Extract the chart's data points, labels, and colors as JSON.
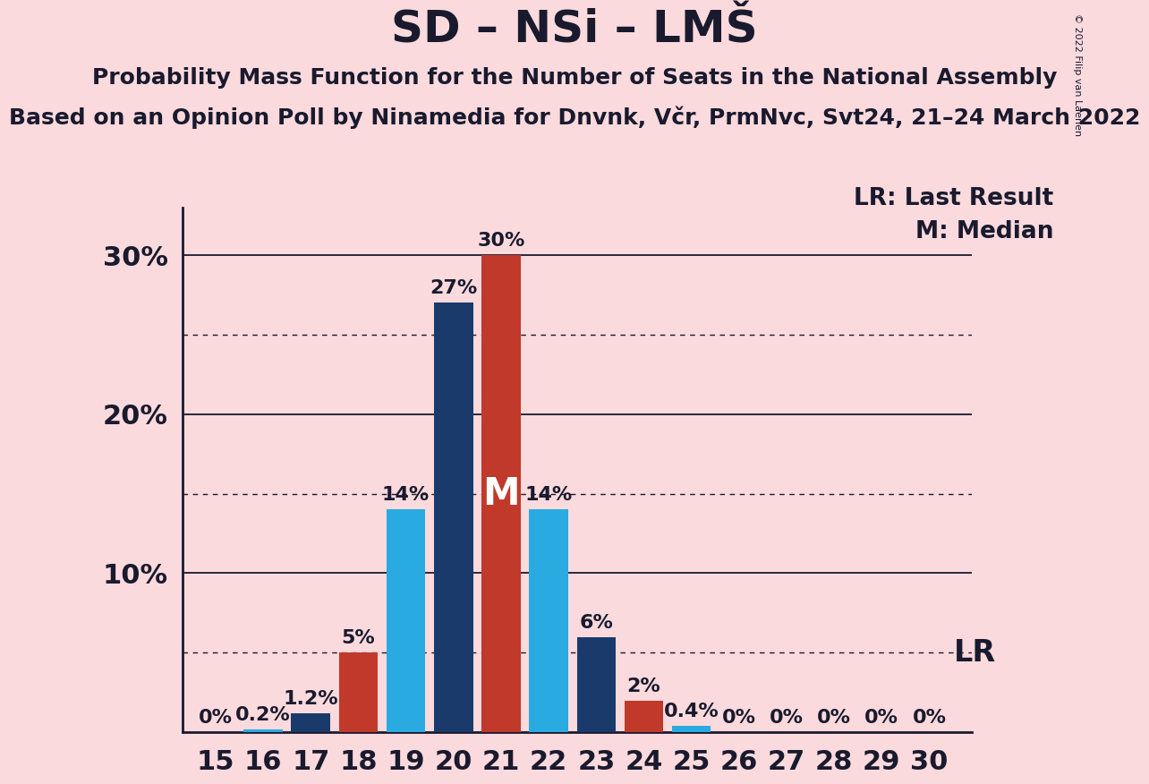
{
  "title": "SD – NSi – LMŠ",
  "subtitle1": "Probability Mass Function for the Number of Seats in the National Assembly",
  "subtitle2": "Based on an Opinion Poll by Ninamedia for Dnvnk, Včr, PrmNvc, Svt24, 21–24 March 2022",
  "copyright": "© 2022 Filip van Laenen",
  "background_color": "#fadadd",
  "seats": [
    15,
    16,
    17,
    18,
    19,
    20,
    21,
    22,
    23,
    24,
    25,
    26,
    27,
    28,
    29,
    30
  ],
  "values": [
    0.0,
    0.2,
    1.2,
    5.0,
    14.0,
    27.0,
    30.0,
    14.0,
    6.0,
    2.0,
    0.4,
    0.0,
    0.0,
    0.0,
    0.0,
    0.0
  ],
  "colors": [
    "#29abe2",
    "#29abe2",
    "#1a3a6b",
    "#c0392b",
    "#29abe2",
    "#1a3a6b",
    "#c0392b",
    "#29abe2",
    "#1a3a6b",
    "#c0392b",
    "#29abe2",
    "#1a3a6b",
    "#1a3a6b",
    "#1a3a6b",
    "#1a3a6b",
    "#1a3a6b"
  ],
  "bar_labels": [
    "0%",
    "0.2%",
    "1.2%",
    "5%",
    "14%",
    "27%",
    "30%",
    "14%",
    "6%",
    "2%",
    "0.4%",
    "0%",
    "0%",
    "0%",
    "0%",
    "0%"
  ],
  "median_seat": 21,
  "lr_value": 5.0,
  "ylim_max": 33,
  "solid_gridlines": [
    10.0,
    20.0,
    30.0
  ],
  "dotted_gridlines": [
    5.0,
    15.0,
    25.0
  ],
  "lr_label": "LR",
  "legend_lr": "LR: Last Result",
  "legend_m": "M: Median",
  "spine_color": "#1a1a2e",
  "text_color": "#1a1a2e",
  "title_fontsize": 36,
  "subtitle1_fontsize": 18,
  "subtitle2_fontsize": 18,
  "axis_tick_fontsize": 22,
  "bar_label_fontsize": 16,
  "median_label_fontsize": 30,
  "legend_fontsize": 19,
  "lr_label_fontsize": 24,
  "copyright_fontsize": 8
}
